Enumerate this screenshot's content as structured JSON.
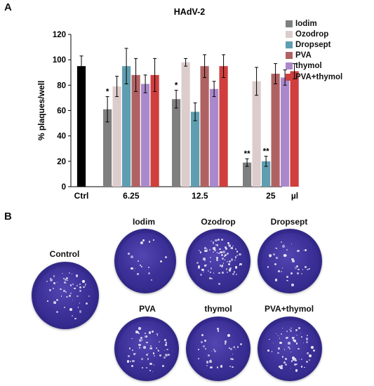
{
  "panel_a_letter": "A",
  "panel_b_letter": "B",
  "chart_data": {
    "type": "bar",
    "title": "HAdV-2",
    "xlabel": "",
    "ylabel": "% plaques/well",
    "ylim": [
      0,
      120
    ],
    "yticks": [
      0,
      20,
      40,
      60,
      80,
      100,
      120
    ],
    "unit_label": "µl",
    "control": {
      "label": "Ctrl",
      "value": 95,
      "err": 8,
      "color": "#000000"
    },
    "categories": [
      "6.25",
      "12.5",
      "25"
    ],
    "series": [
      {
        "name": "Iodim",
        "color": "#7f7f7f",
        "values": [
          61,
          69,
          19
        ],
        "err": [
          10,
          7,
          3
        ],
        "marks": [
          "*",
          "*",
          "**"
        ]
      },
      {
        "name": "Ozodrop",
        "color": "#ddcccc",
        "values": [
          79,
          98,
          83
        ],
        "err": [
          8,
          3,
          11
        ],
        "marks": [
          "",
          "",
          ""
        ]
      },
      {
        "name": "Dropsept",
        "color": "#5f9eb0",
        "values": [
          95,
          59,
          20
        ],
        "err": [
          14,
          7,
          4
        ],
        "marks": [
          "",
          "",
          "**"
        ]
      },
      {
        "name": "PVA",
        "color": "#b06262",
        "values": [
          88,
          95,
          89
        ],
        "err": [
          13,
          9,
          8
        ],
        "marks": [
          "",
          "",
          ""
        ]
      },
      {
        "name": "thymol",
        "color": "#aa88cc",
        "values": [
          81,
          77,
          86
        ],
        "err": [
          7,
          6,
          6
        ],
        "marks": [
          "",
          "",
          ""
        ]
      },
      {
        "name": "PVA+thymol",
        "color": "#d03e3e",
        "values": [
          88,
          95,
          91
        ],
        "err": [
          13,
          9,
          6
        ],
        "marks": [
          "",
          "",
          ""
        ]
      }
    ],
    "legend_position": "right",
    "grid": false
  },
  "plates": {
    "control": "Control",
    "iodim": "Iodim",
    "ozodrop": "Ozodrop",
    "dropsept": "Dropsept",
    "pva": "PVA",
    "thymol": "thymol",
    "pva_thymol": "PVA+thymol"
  },
  "plate_plaque_density": {
    "control": 55,
    "iodim": 18,
    "ozodrop": 90,
    "dropsept": 40,
    "pva": 60,
    "thymol": 35,
    "pva_thymol": 70
  }
}
